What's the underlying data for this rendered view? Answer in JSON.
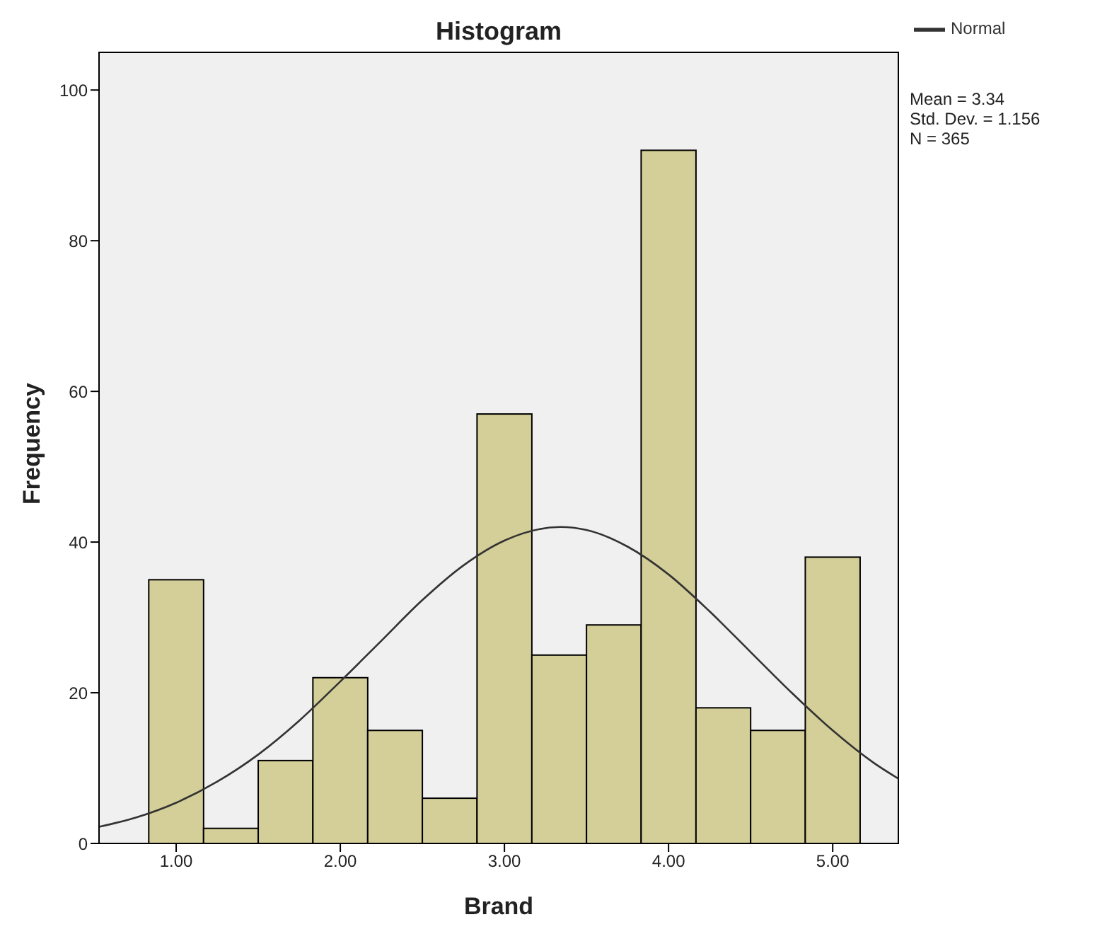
{
  "chart_data": {
    "type": "histogram",
    "title": "Histogram",
    "xlabel": "Brand",
    "ylabel": "Frequency",
    "bins": [
      0.833,
      1.167,
      1.5,
      1.833,
      2.167,
      2.5,
      2.833,
      3.167,
      3.5,
      3.833,
      4.167,
      4.5,
      4.833,
      5.167
    ],
    "values": [
      35,
      2,
      11,
      22,
      15,
      6,
      57,
      25,
      29,
      92,
      18,
      15,
      38
    ],
    "color": "#d4cf98",
    "xlim": [
      0.53,
      5.4
    ],
    "ylim": [
      0,
      105
    ],
    "xticks": [
      {
        "value": 1,
        "label": "1.00"
      },
      {
        "value": 2,
        "label": "2.00"
      },
      {
        "value": 3,
        "label": "3.00"
      },
      {
        "value": 4,
        "label": "4.00"
      },
      {
        "value": 5,
        "label": "5.00"
      }
    ],
    "yticks": [
      0,
      20,
      40,
      60,
      80,
      100
    ],
    "series": [
      {
        "type": "line",
        "name": "Normal",
        "color": "#333333",
        "x": [
          0.53,
          0.75,
          1,
          1.25,
          1.5,
          1.75,
          2,
          2.25,
          2.5,
          2.75,
          3,
          3.34,
          3.5,
          3.75,
          4,
          4.25,
          4.5,
          4.75,
          5,
          5.25,
          5.4
        ],
        "values": [
          2.2,
          3.4,
          5.4,
          8.2,
          11.8,
          16.3,
          21.5,
          26.9,
          32.3,
          36.9,
          40.2,
          42,
          41.6,
          39.4,
          35.7,
          30.8,
          25.4,
          20,
          15,
          10.7,
          8.6
        ]
      }
    ],
    "legend": "top right",
    "marker": "none",
    "annotations": [
      "Mean = 3.34",
      "Std. Dev. = 1.156",
      "N = 365"
    ]
  }
}
